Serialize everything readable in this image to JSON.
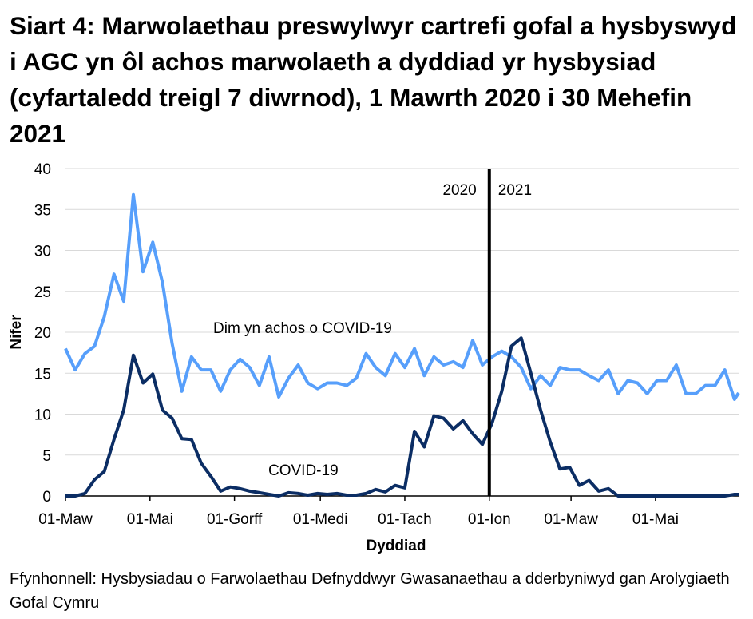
{
  "title": "Siart 4: Marwolaethau preswylwyr cartrefi gofal a hysbyswyd i AGC yn ôl achos marwolaeth a dyddiad yr hysbysiad (cyfartaledd treigl 7 diwrnod), 1 Mawrth 2020 i 30 Mehefin 2021",
  "source": "Ffynhonnell: Hysbysiadau o Farwolaethau Defnyddwyr Gwasanaethau a dderbyniwyd gan Arolygiaeth Gofal Cymru",
  "chart_data": {
    "type": "line",
    "title": "Siart 4: Marwolaethau preswylwyr cartrefi gofal a hysbyswyd i AGC yn ôl achos marwolaeth a dyddiad yr hysbysiad (cyfartaledd treigl 7 diwrnod), 1 Mawrth 2020 i 30 Mehefin 2021",
    "xlabel": "Dyddiad",
    "ylabel": "Nifer",
    "xlim": [
      "2020-03-01",
      "2021-06-30"
    ],
    "ylim": [
      0,
      40
    ],
    "yticks": [
      0,
      5,
      10,
      15,
      20,
      25,
      30,
      35,
      40
    ],
    "xticks": [
      {
        "date": "2020-03-01",
        "label": "01-Maw"
      },
      {
        "date": "2020-05-01",
        "label": "01-Mai"
      },
      {
        "date": "2020-07-01",
        "label": "01-Gorff"
      },
      {
        "date": "2020-09-01",
        "label": "01-Medi"
      },
      {
        "date": "2020-11-01",
        "label": "01-Tach"
      },
      {
        "date": "2021-01-01",
        "label": "01-Ion"
      },
      {
        "date": "2021-03-01",
        "label": "01-Maw"
      },
      {
        "date": "2021-05-01",
        "label": "01-Mai"
      }
    ],
    "grid": true,
    "legend": "none (inline labels)",
    "year_divider": {
      "date": "2021-01-01",
      "left_label": "2020",
      "right_label": "2021",
      "color": "#000000"
    },
    "x": [
      "2020-03-01",
      "2020-03-08",
      "2020-03-15",
      "2020-03-22",
      "2020-03-29",
      "2020-04-05",
      "2020-04-12",
      "2020-04-19",
      "2020-04-26",
      "2020-05-03",
      "2020-05-10",
      "2020-05-17",
      "2020-05-24",
      "2020-05-31",
      "2020-06-07",
      "2020-06-14",
      "2020-06-21",
      "2020-06-28",
      "2020-07-05",
      "2020-07-12",
      "2020-07-19",
      "2020-07-26",
      "2020-08-02",
      "2020-08-09",
      "2020-08-16",
      "2020-08-23",
      "2020-08-30",
      "2020-09-06",
      "2020-09-13",
      "2020-09-20",
      "2020-09-27",
      "2020-10-04",
      "2020-10-11",
      "2020-10-18",
      "2020-10-25",
      "2020-11-01",
      "2020-11-08",
      "2020-11-15",
      "2020-11-22",
      "2020-11-29",
      "2020-12-06",
      "2020-12-13",
      "2020-12-20",
      "2020-12-27",
      "2021-01-03",
      "2021-01-10",
      "2021-01-17",
      "2021-01-24",
      "2021-01-31",
      "2021-02-07",
      "2021-02-14",
      "2021-02-21",
      "2021-02-28",
      "2021-03-07",
      "2021-03-14",
      "2021-03-21",
      "2021-03-28",
      "2021-04-04",
      "2021-04-11",
      "2021-04-18",
      "2021-04-25",
      "2021-05-02",
      "2021-05-09",
      "2021-05-16",
      "2021-05-23",
      "2021-05-30",
      "2021-06-06",
      "2021-06-13",
      "2021-06-20",
      "2021-06-27",
      "2021-06-30"
    ],
    "series": [
      {
        "name": "Dim yn achos o COVID-19",
        "color": "#579ffb",
        "values": [
          18,
          15.4,
          17.4,
          18.3,
          21.9,
          27.1,
          23.8,
          36.8,
          27.4,
          31,
          26.1,
          18.6,
          12.8,
          17,
          15.4,
          15.4,
          12.8,
          15.4,
          16.7,
          15.7,
          13.5,
          17,
          12.1,
          14.4,
          16,
          13.8,
          13.1,
          13.8,
          13.8,
          13.5,
          14.4,
          17.4,
          15.7,
          14.7,
          17.4,
          15.7,
          18,
          14.7,
          17,
          16,
          16.4,
          15.7,
          19,
          16,
          17,
          17.7,
          17,
          15.7,
          13.1,
          14.7,
          13.5,
          15.7,
          15.4,
          15.4,
          14.7,
          14.1,
          15.4,
          12.5,
          14.1,
          13.8,
          12.5,
          14.1,
          14.1,
          16,
          12.5,
          12.5,
          13.5,
          13.5,
          15.4,
          11.8,
          12.6
        ]
      },
      {
        "name": "COVID-19",
        "color": "#0b2d64",
        "values": [
          0,
          0,
          0.3,
          2,
          3,
          6.9,
          10.5,
          17.2,
          13.8,
          14.9,
          10.5,
          9.5,
          7,
          6.9,
          4,
          2.4,
          0.6,
          1.1,
          0.9,
          0.6,
          0.4,
          0.2,
          0,
          0.4,
          0.3,
          0.1,
          0.3,
          0.2,
          0.3,
          0.1,
          0.1,
          0.3,
          0.8,
          0.5,
          1.3,
          1,
          7.9,
          6,
          9.8,
          9.5,
          8.2,
          9.2,
          7.6,
          6.3,
          8.9,
          12.8,
          18.3,
          19.3,
          15,
          10.5,
          6.6,
          3.3,
          3.5,
          1.3,
          1.9,
          0.6,
          0.9,
          0,
          0,
          0,
          0,
          0,
          0,
          0,
          0,
          0,
          0,
          0,
          0,
          0.2,
          0.2
        ]
      }
    ]
  }
}
